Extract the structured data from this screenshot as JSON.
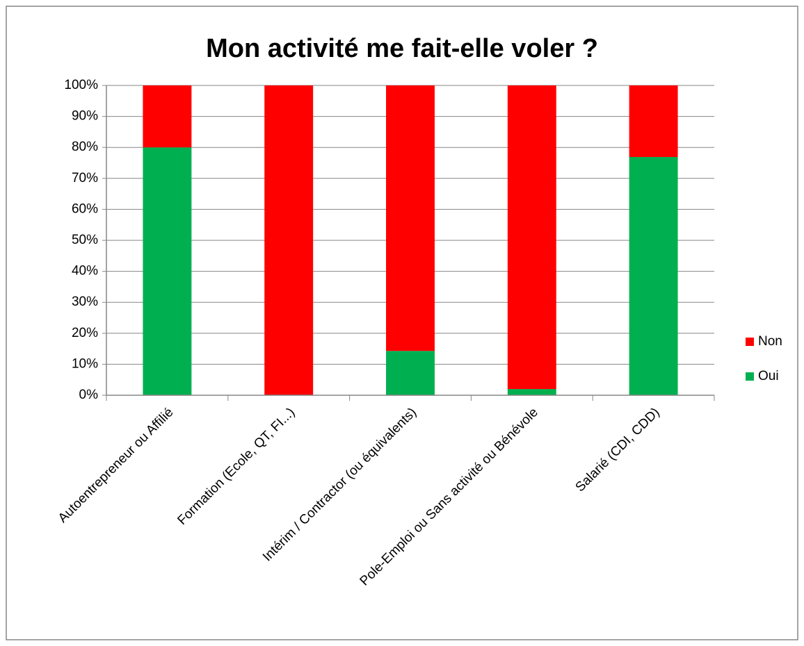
{
  "chart_data": {
    "type": "stacked_bar_100",
    "title": "Mon activité me fait-elle voler ?",
    "categories": [
      "Autoentrepreneur ou Affilié",
      "Formation (Ecole, QT, FI...)",
      "Intérim / Contractor (ou équivalents)",
      "Pole-Emploi ou Sans activité ou Bénévole",
      "Salarié (CDI, CDD)"
    ],
    "series": [
      {
        "name": "Oui",
        "color": "#00b050",
        "values": [
          80,
          0,
          14.3,
          2,
          76.9
        ]
      },
      {
        "name": "Non",
        "color": "#ff0000",
        "values": [
          20,
          100,
          85.7,
          98,
          23.1
        ]
      }
    ],
    "ylim": [
      0,
      100
    ],
    "yticks": [
      {
        "value": 0,
        "label": "0%"
      },
      {
        "value": 10,
        "label": "10%"
      },
      {
        "value": 20,
        "label": "20%"
      },
      {
        "value": 30,
        "label": "30%"
      },
      {
        "value": 40,
        "label": "40%"
      },
      {
        "value": 50,
        "label": "50%"
      },
      {
        "value": 60,
        "label": "60%"
      },
      {
        "value": 70,
        "label": "70%"
      },
      {
        "value": 80,
        "label": "80%"
      },
      {
        "value": 90,
        "label": "90%"
      },
      {
        "value": 100,
        "label": "100%"
      }
    ],
    "grid": true,
    "legend": "right"
  }
}
